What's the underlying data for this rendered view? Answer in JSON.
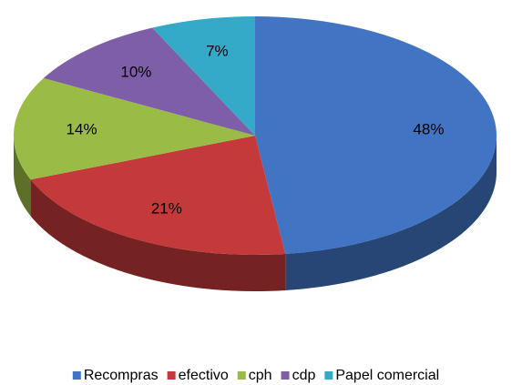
{
  "chart_data": {
    "type": "pie3d",
    "categories": [
      "Recompras",
      "efectivo",
      "cph",
      "cdp",
      "Papel comercial"
    ],
    "values": [
      48,
      21,
      14,
      10,
      7
    ],
    "value_labels": [
      "48%",
      "21%",
      "14%",
      "10%",
      "7%"
    ],
    "colors": [
      "#4274c4",
      "#c4393a",
      "#9bbb47",
      "#7f5ea8",
      "#35a9c8"
    ],
    "legend": "bottom"
  }
}
